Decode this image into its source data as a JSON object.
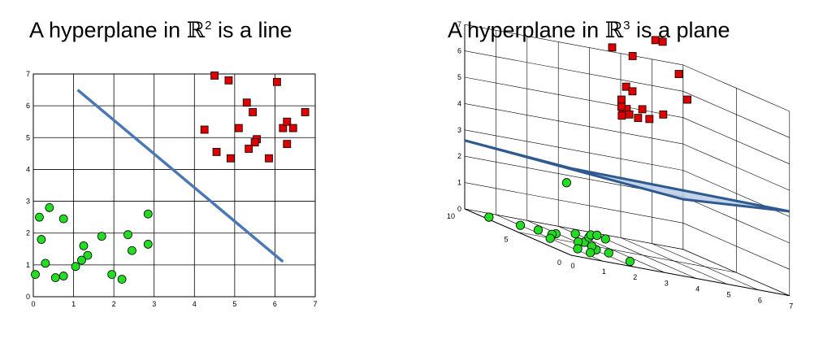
{
  "titles": {
    "left": {
      "pre": "A hyperplane in ",
      "space": "ℝ",
      "exp": "2",
      "post": " is a line"
    },
    "right": {
      "pre": "A hyperplane in ",
      "space": "ℝ",
      "exp": "3",
      "post": " is a plane"
    }
  },
  "colors": {
    "class_a": "#dd0000",
    "class_b": "#22dd22",
    "hyperplane_line": "#4a78b4",
    "hyperplane_plane_fill": "#b8cbe6",
    "hyperplane_plane_edge": "#2f5a90"
  },
  "chart_data": [
    {
      "type": "scatter",
      "title": "",
      "xlabel": "",
      "ylabel": "",
      "xlim": [
        0,
        7
      ],
      "ylim": [
        0,
        7
      ],
      "xticks": [
        "0",
        "1",
        "2",
        "3",
        "4",
        "5",
        "6",
        "7"
      ],
      "yticks": [
        "0",
        "1",
        "2",
        "3",
        "4",
        "5",
        "6",
        "7"
      ],
      "grid": true,
      "series": [
        {
          "marker": "square",
          "color": "#dd0000",
          "points": [
            [
              4.5,
              6.95
            ],
            [
              4.85,
              6.8
            ],
            [
              6.05,
              6.75
            ],
            [
              5.3,
              6.1
            ],
            [
              5.45,
              5.8
            ],
            [
              6.75,
              5.8
            ],
            [
              4.25,
              5.25
            ],
            [
              5.1,
              5.3
            ],
            [
              6.2,
              5.3
            ],
            [
              6.3,
              5.5
            ],
            [
              6.45,
              5.3
            ],
            [
              5.55,
              4.95
            ],
            [
              5.5,
              4.85
            ],
            [
              5.35,
              4.65
            ],
            [
              4.55,
              4.55
            ],
            [
              4.9,
              4.35
            ],
            [
              5.85,
              4.35
            ],
            [
              6.3,
              4.8
            ]
          ]
        },
        {
          "marker": "circle",
          "color": "#22dd22",
          "points": [
            [
              0.4,
              2.8
            ],
            [
              0.15,
              2.5
            ],
            [
              0.75,
              2.45
            ],
            [
              2.85,
              2.6
            ],
            [
              1.7,
              1.9
            ],
            [
              2.35,
              1.95
            ],
            [
              0.2,
              1.8
            ],
            [
              1.25,
              1.6
            ],
            [
              2.85,
              1.65
            ],
            [
              1.35,
              1.3
            ],
            [
              2.45,
              1.45
            ],
            [
              1.2,
              1.15
            ],
            [
              0.3,
              1.05
            ],
            [
              1.05,
              0.95
            ],
            [
              0.05,
              0.7
            ],
            [
              1.95,
              0.7
            ],
            [
              0.55,
              0.6
            ],
            [
              0.75,
              0.65
            ],
            [
              2.2,
              0.55
            ]
          ]
        }
      ],
      "hyperplane": {
        "from": [
          1.1,
          6.5
        ],
        "to": [
          6.2,
          1.1
        ]
      }
    },
    {
      "type": "scatter3d",
      "title": "",
      "xlim": [
        0,
        7
      ],
      "ylim": [
        0,
        10
      ],
      "zlim": [
        0,
        7
      ],
      "xticks": [
        "0",
        "1",
        "2",
        "3",
        "4",
        "5",
        "6",
        "7"
      ],
      "yticks": [
        "0",
        "5",
        "10"
      ],
      "zticks": [
        "0",
        "1",
        "2",
        "3",
        "4",
        "5",
        "6",
        "7"
      ],
      "grid": true,
      "series": [
        {
          "marker": "square",
          "color": "#dd0000",
          "points": [
            [
              3.6,
              6.7,
              7.5
            ],
            [
              5.6,
              8.5,
              7.9
            ],
            [
              5.8,
              8.4,
              7.9
            ],
            [
              5.6,
              6.3,
              7.0
            ],
            [
              3.3,
              3.9,
              7.6
            ],
            [
              3.4,
              4.8,
              6.3
            ],
            [
              3.9,
              6.6,
              5.1
            ],
            [
              3.5,
              4.5,
              6.2
            ],
            [
              2.6,
              2.4,
              5.7
            ],
            [
              3.1,
              2.4,
              5.8
            ],
            [
              3.1,
              2.8,
              5.4
            ],
            [
              2.5,
              2.6,
              6.0
            ],
            [
              2.6,
              2.9,
              5.7
            ],
            [
              3.6,
              1.9,
              5.8
            ],
            [
              3.6,
              3.2,
              5.4
            ],
            [
              5.5,
              5.2,
              6.2
            ],
            [
              3.5,
              5.5,
              5.1
            ],
            [
              3.4,
              4.5,
              5.3
            ]
          ]
        },
        {
          "marker": "circle",
          "color": "#22dd22",
          "points": [
            [
              0.3,
              8.6,
              0
            ],
            [
              1.0,
              7.7,
              0
            ],
            [
              1.4,
              7.2,
              0
            ],
            [
              1.9,
              7.0,
              0
            ],
            [
              1.6,
              6.5,
              0
            ],
            [
              2.4,
              5.8,
              0
            ],
            [
              1.0,
              4.9,
              0
            ],
            [
              2.1,
              5.5,
              0
            ],
            [
              1.2,
              2.9,
              0
            ],
            [
              2.1,
              3.8,
              0
            ],
            [
              2.4,
              3.5,
              0
            ],
            [
              2.3,
              4.8,
              0
            ],
            [
              3.3,
              8.0,
              0
            ],
            [
              3.7,
              9.0,
              0
            ],
            [
              4.0,
              9.3,
              0
            ],
            [
              4.0,
              8.5,
              0
            ],
            [
              3.0,
              8.4,
              0
            ],
            [
              2.5,
              1.8,
              0
            ],
            [
              1.4,
              2.3,
              0
            ],
            [
              3.3,
              10.1,
              1.7
            ]
          ]
        }
      ],
      "hyperplane_corners": [
        [
          0,
          10,
          2.6
        ],
        [
          7,
          10,
          1.9
        ],
        [
          7,
          0,
          3.2
        ],
        [
          0,
          0,
          3.3
        ]
      ]
    }
  ]
}
